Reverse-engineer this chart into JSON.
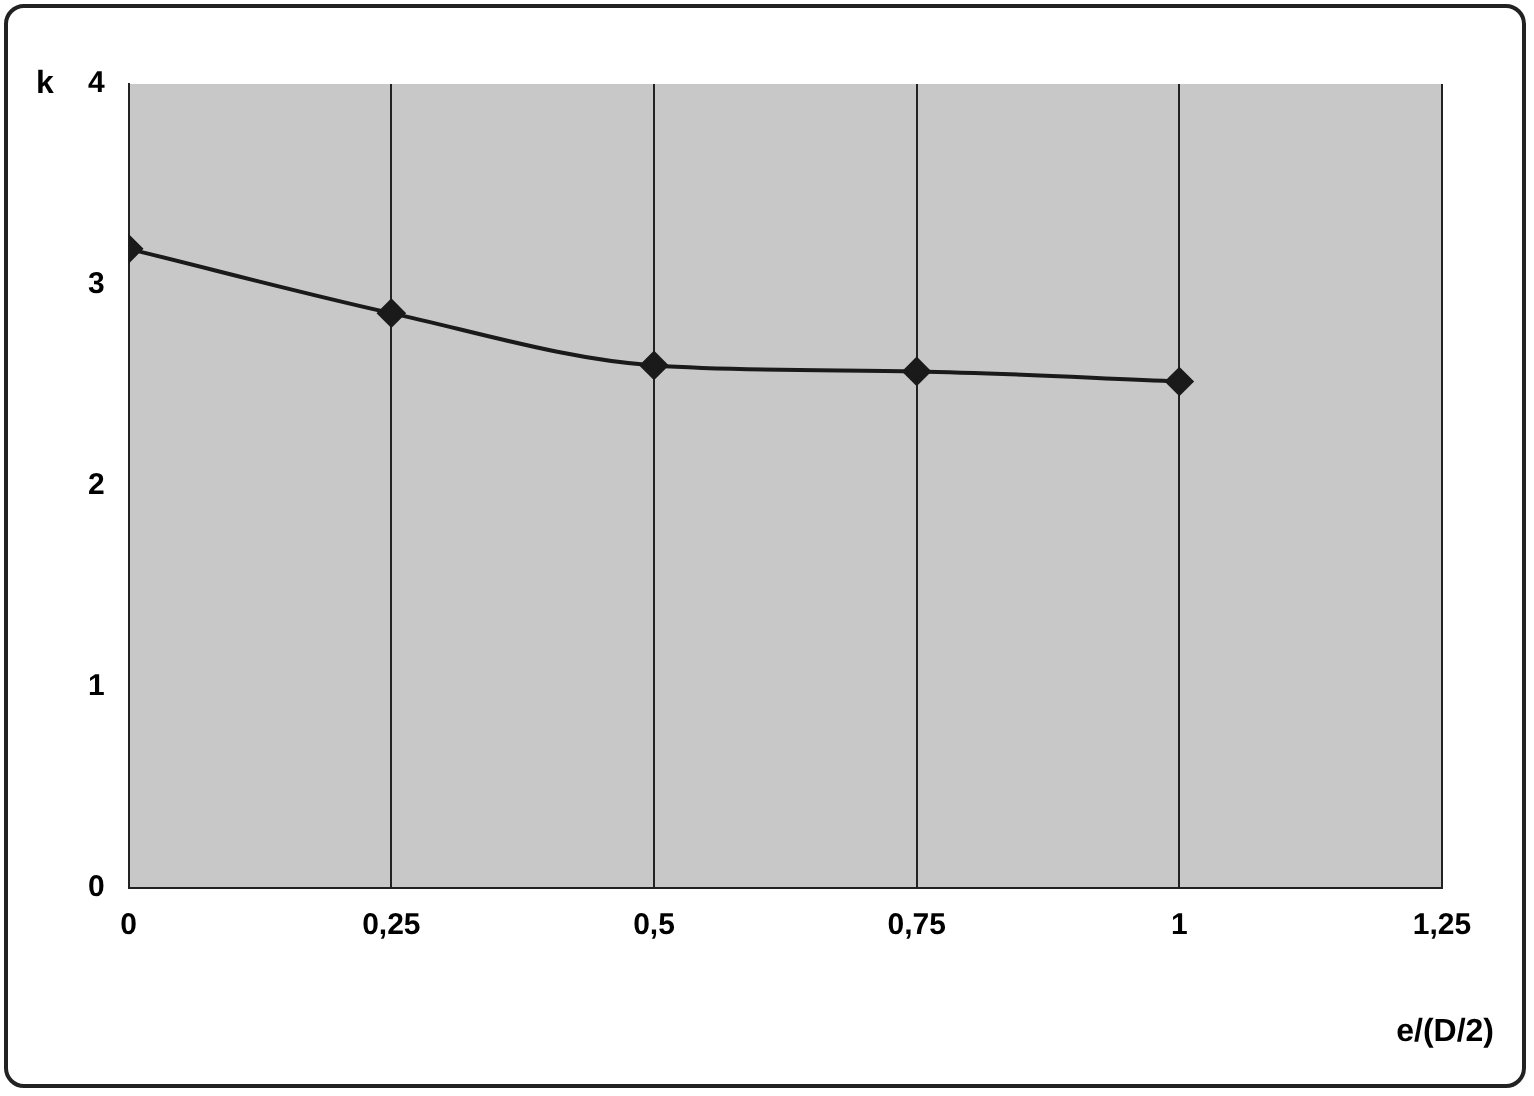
{
  "chart_data": {
    "type": "line",
    "xlabel": "e/(D/2)",
    "ylabel": "k",
    "x": [
      0,
      0.25,
      0.5,
      0.75,
      1
    ],
    "series": [
      {
        "color": "#1a1a1a",
        "values": [
          3.18,
          2.86,
          2.6,
          2.57,
          2.52
        ]
      }
    ],
    "xlim": [
      0,
      1.25
    ],
    "xticks": [
      0,
      {
        "value": 0.25,
        "label": "0,25"
      },
      {
        "value": 0.5,
        "label": "0,5"
      },
      {
        "value": 0.75,
        "label": "0,75"
      },
      1,
      {
        "value": 1.25,
        "label": "1,25"
      }
    ],
    "ylim": [
      0,
      4
    ],
    "yticks": [
      0,
      1,
      2,
      3,
      4
    ],
    "grid": "x",
    "legend": false,
    "marker": "diamond",
    "line_style": "solid"
  }
}
